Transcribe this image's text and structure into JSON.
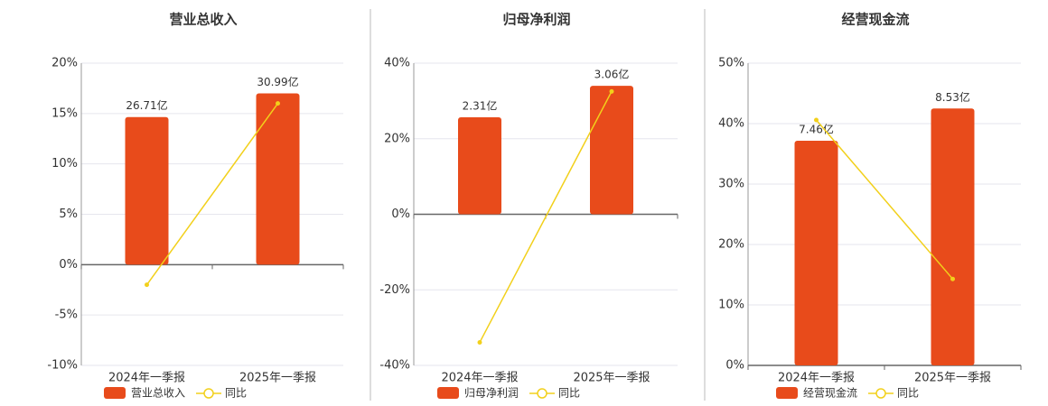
{
  "chart_data": [
    {
      "type": "bar",
      "title": "营业总收入",
      "categories": [
        "2024年一季报",
        "2025年一季报"
      ],
      "series": [
        {
          "name": "营业总收入",
          "type": "bar",
          "color": "#e84b1b",
          "values": [
            26.71,
            30.99
          ],
          "value_labels": [
            "26.71亿",
            "30.99亿"
          ]
        },
        {
          "name": "同比",
          "type": "line",
          "color": "#f2d01b",
          "values": [
            -2,
            16
          ]
        }
      ],
      "ylim": [
        -10,
        20
      ],
      "yticks": [
        {
          "value": -10,
          "label": "-10%"
        },
        {
          "value": -5,
          "label": "-5%"
        },
        {
          "value": 0,
          "label": "0%"
        },
        {
          "value": 5,
          "label": "5%"
        },
        {
          "value": 10,
          "label": "10%"
        },
        {
          "value": 15,
          "label": "15%"
        },
        {
          "value": 20,
          "label": "20%"
        }
      ],
      "grid": true
    },
    {
      "type": "bar",
      "title": "归母净利润",
      "categories": [
        "2024年一季报",
        "2025年一季报"
      ],
      "series": [
        {
          "name": "归母净利润",
          "type": "bar",
          "color": "#e84b1b",
          "values": [
            2.31,
            3.06
          ],
          "value_labels": [
            "2.31亿",
            "3.06亿"
          ]
        },
        {
          "name": "同比",
          "type": "line",
          "color": "#f2d01b",
          "values": [
            -33.9,
            32.5
          ]
        }
      ],
      "ylim": [
        -40,
        40
      ],
      "yticks": [
        {
          "value": -40,
          "label": "-40%"
        },
        {
          "value": -20,
          "label": "-20%"
        },
        {
          "value": 0,
          "label": "0%"
        },
        {
          "value": 20,
          "label": "20%"
        },
        {
          "value": 40,
          "label": "40%"
        }
      ],
      "grid": true
    },
    {
      "type": "bar",
      "title": "经营现金流",
      "categories": [
        "2024年一季报",
        "2025年一季报"
      ],
      "series": [
        {
          "name": "经营现金流",
          "type": "bar",
          "color": "#e84b1b",
          "values": [
            7.46,
            8.53
          ],
          "value_labels": [
            "7.46亿",
            "8.53亿"
          ]
        },
        {
          "name": "同比",
          "type": "line",
          "color": "#f2d01b",
          "values": [
            40.6,
            14.3
          ]
        }
      ],
      "ylim": [
        0,
        50
      ],
      "yticks": [
        {
          "value": 0,
          "label": "0%"
        },
        {
          "value": 10,
          "label": "10%"
        },
        {
          "value": 20,
          "label": "20%"
        },
        {
          "value": 30,
          "label": "30%"
        },
        {
          "value": 40,
          "label": "40%"
        },
        {
          "value": 50,
          "label": "50%"
        }
      ],
      "grid": true
    }
  ]
}
